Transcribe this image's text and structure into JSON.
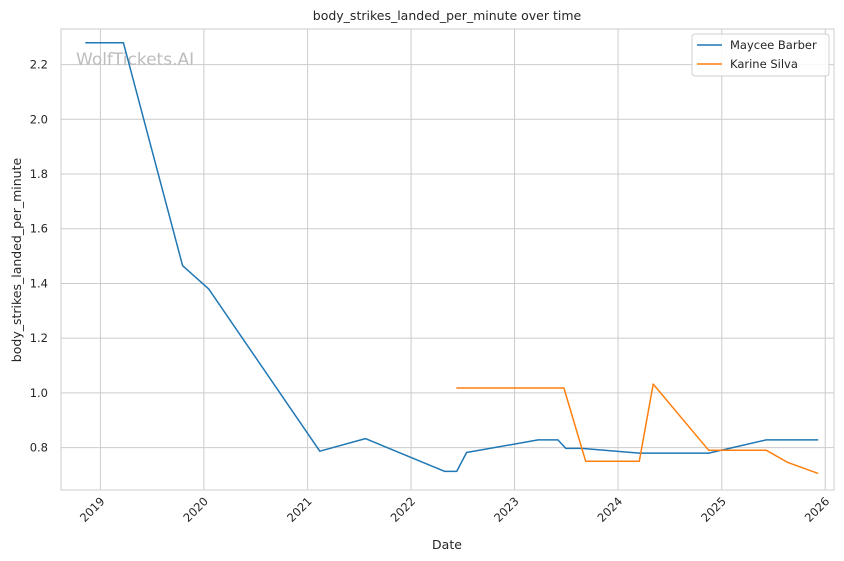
{
  "chart_data": {
    "type": "line",
    "title": "body_strikes_landed_per_minute over time",
    "xlabel": "Date",
    "ylabel": "body_strikes_landed_per_minute",
    "watermark": "WolfTickets.AI",
    "xlim": [
      "2018-08-15",
      "2026-02-01"
    ],
    "ylim": [
      0.645,
      2.33
    ],
    "x_ticks": [
      "2019",
      "2020",
      "2021",
      "2022",
      "2023",
      "2024",
      "2025",
      "2026"
    ],
    "y_ticks": [
      "0.8",
      "1.0",
      "1.2",
      "1.4",
      "1.6",
      "1.8",
      "2.0",
      "2.2"
    ],
    "grid": true,
    "legend_position": "top-right",
    "series": [
      {
        "name": "Maycee Barber",
        "color": "#1f77b4",
        "points": [
          {
            "x": "2018-11-10",
            "y": 2.28
          },
          {
            "x": "2019-03-23",
            "y": 2.28
          },
          {
            "x": "2019-10-18",
            "y": 1.465
          },
          {
            "x": "2020-01-18",
            "y": 1.38
          },
          {
            "x": "2021-02-13",
            "y": 0.787
          },
          {
            "x": "2021-07-24",
            "y": 0.833
          },
          {
            "x": "2022-04-30",
            "y": 0.713
          },
          {
            "x": "2022-06-11",
            "y": 0.713
          },
          {
            "x": "2022-07-16",
            "y": 0.782
          },
          {
            "x": "2023-03-25",
            "y": 0.828
          },
          {
            "x": "2023-06-03",
            "y": 0.828
          },
          {
            "x": "2023-07-01",
            "y": 0.797
          },
          {
            "x": "2023-08-26",
            "y": 0.797
          },
          {
            "x": "2024-03-16",
            "y": 0.78
          },
          {
            "x": "2024-11-16",
            "y": 0.78
          },
          {
            "x": "2025-06-07",
            "y": 0.828
          },
          {
            "x": "2025-12-06",
            "y": 0.828
          }
        ]
      },
      {
        "name": "Karine Silva",
        "color": "#ff7f0e",
        "points": [
          {
            "x": "2022-06-11",
            "y": 1.018
          },
          {
            "x": "2023-06-24",
            "y": 1.018
          },
          {
            "x": "2023-09-09",
            "y": 0.75
          },
          {
            "x": "2024-03-16",
            "y": 0.75
          },
          {
            "x": "2024-05-04",
            "y": 1.032
          },
          {
            "x": "2024-11-16",
            "y": 0.79
          },
          {
            "x": "2025-06-07",
            "y": 0.79
          },
          {
            "x": "2025-08-23",
            "y": 0.745
          },
          {
            "x": "2025-12-06",
            "y": 0.706
          }
        ]
      }
    ]
  }
}
